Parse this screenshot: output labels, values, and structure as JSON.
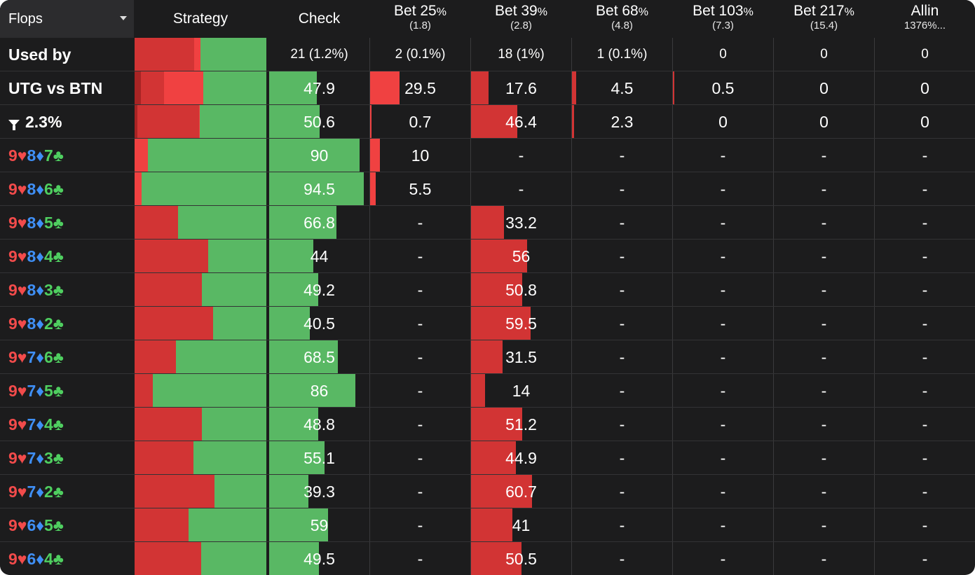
{
  "header": {
    "flops_label": "Flops",
    "strategy_label": "Strategy",
    "check_label": "Check",
    "actions": [
      {
        "label": "Bet 25",
        "pct": "%",
        "sub": "(1.8)"
      },
      {
        "label": "Bet 39",
        "pct": "%",
        "sub": "(2.8)"
      },
      {
        "label": "Bet 68",
        "pct": "%",
        "sub": "(4.8)"
      },
      {
        "label": "Bet 103",
        "pct": "%",
        "sub": "(7.3)"
      },
      {
        "label": "Bet 217",
        "pct": "%",
        "sub": "(15.4)"
      },
      {
        "label": "Allin",
        "pct": "",
        "sub": "1376%..."
      }
    ]
  },
  "colors": {
    "green": "#59b864",
    "red": "#d23434",
    "bright_red": "#f04141",
    "dark_red": "#a82424",
    "background": "#1c1c1d",
    "suit_heart": "#f24b4b",
    "suit_diamond": "#3f8ff5",
    "suit_club": "#4fcf60"
  },
  "summary_rows": [
    {
      "label": "Used by",
      "cells": [
        "21 (1.2%)",
        "2 (0.1%)",
        "18 (1%)",
        "1 (0.1%)",
        "0",
        "0",
        "0"
      ]
    },
    {
      "label": "UTG vs BTN",
      "values": [
        47.9,
        29.5,
        17.6,
        4.5,
        0.5,
        0,
        0
      ],
      "cells": [
        "47.9",
        "29.5",
        "17.6",
        "4.5",
        "0.5",
        "0",
        "0"
      ]
    },
    {
      "label": "2.3%",
      "values": [
        50.6,
        0.7,
        46.4,
        2.3,
        0,
        0,
        0
      ],
      "cells": [
        "50.6",
        "0.7",
        "46.4",
        "2.3",
        "0",
        "0",
        "0"
      ]
    }
  ],
  "flops": [
    {
      "board": [
        {
          "rank": "9",
          "suit": "♥"
        },
        {
          "rank": "8",
          "suit": "♦"
        },
        {
          "rank": "7",
          "suit": "♣"
        }
      ],
      "check": 90,
      "check_text": "90",
      "bet25": 10,
      "bet25_text": "10",
      "bet39": null,
      "bet39_text": "-"
    },
    {
      "board": [
        {
          "rank": "9",
          "suit": "♥"
        },
        {
          "rank": "8",
          "suit": "♦"
        },
        {
          "rank": "6",
          "suit": "♣"
        }
      ],
      "check": 94.5,
      "check_text": "94.5",
      "bet25": 5.5,
      "bet25_text": "5.5",
      "bet39": null,
      "bet39_text": "-"
    },
    {
      "board": [
        {
          "rank": "9",
          "suit": "♥"
        },
        {
          "rank": "8",
          "suit": "♦"
        },
        {
          "rank": "5",
          "suit": "♣"
        }
      ],
      "check": 66.8,
      "check_text": "66.8",
      "bet25": null,
      "bet25_text": "-",
      "bet39": 33.2,
      "bet39_text": "33.2"
    },
    {
      "board": [
        {
          "rank": "9",
          "suit": "♥"
        },
        {
          "rank": "8",
          "suit": "♦"
        },
        {
          "rank": "4",
          "suit": "♣"
        }
      ],
      "check": 44,
      "check_text": "44",
      "bet25": null,
      "bet25_text": "-",
      "bet39": 56,
      "bet39_text": "56"
    },
    {
      "board": [
        {
          "rank": "9",
          "suit": "♥"
        },
        {
          "rank": "8",
          "suit": "♦"
        },
        {
          "rank": "3",
          "suit": "♣"
        }
      ],
      "check": 49.2,
      "check_text": "49.2",
      "bet25": null,
      "bet25_text": "-",
      "bet39": 50.8,
      "bet39_text": "50.8"
    },
    {
      "board": [
        {
          "rank": "9",
          "suit": "♥"
        },
        {
          "rank": "8",
          "suit": "♦"
        },
        {
          "rank": "2",
          "suit": "♣"
        }
      ],
      "check": 40.5,
      "check_text": "40.5",
      "bet25": null,
      "bet25_text": "-",
      "bet39": 59.5,
      "bet39_text": "59.5"
    },
    {
      "board": [
        {
          "rank": "9",
          "suit": "♥"
        },
        {
          "rank": "7",
          "suit": "♦"
        },
        {
          "rank": "6",
          "suit": "♣"
        }
      ],
      "check": 68.5,
      "check_text": "68.5",
      "bet25": null,
      "bet25_text": "-",
      "bet39": 31.5,
      "bet39_text": "31.5"
    },
    {
      "board": [
        {
          "rank": "9",
          "suit": "♥"
        },
        {
          "rank": "7",
          "suit": "♦"
        },
        {
          "rank": "5",
          "suit": "♣"
        }
      ],
      "check": 86,
      "check_text": "86",
      "bet25": null,
      "bet25_text": "-",
      "bet39": 14,
      "bet39_text": "14"
    },
    {
      "board": [
        {
          "rank": "9",
          "suit": "♥"
        },
        {
          "rank": "7",
          "suit": "♦"
        },
        {
          "rank": "4",
          "suit": "♣"
        }
      ],
      "check": 48.8,
      "check_text": "48.8",
      "bet25": null,
      "bet25_text": "-",
      "bet39": 51.2,
      "bet39_text": "51.2"
    },
    {
      "board": [
        {
          "rank": "9",
          "suit": "♥"
        },
        {
          "rank": "7",
          "suit": "♦"
        },
        {
          "rank": "3",
          "suit": "♣"
        }
      ],
      "check": 55.1,
      "check_text": "55.1",
      "bet25": null,
      "bet25_text": "-",
      "bet39": 44.9,
      "bet39_text": "44.9"
    },
    {
      "board": [
        {
          "rank": "9",
          "suit": "♥"
        },
        {
          "rank": "7",
          "suit": "♦"
        },
        {
          "rank": "2",
          "suit": "♣"
        }
      ],
      "check": 39.3,
      "check_text": "39.3",
      "bet25": null,
      "bet25_text": "-",
      "bet39": 60.7,
      "bet39_text": "60.7"
    },
    {
      "board": [
        {
          "rank": "9",
          "suit": "♥"
        },
        {
          "rank": "6",
          "suit": "♦"
        },
        {
          "rank": "5",
          "suit": "♣"
        }
      ],
      "check": 59,
      "check_text": "59",
      "bet25": null,
      "bet25_text": "-",
      "bet39": 41,
      "bet39_text": "41"
    },
    {
      "board": [
        {
          "rank": "9",
          "suit": "♥"
        },
        {
          "rank": "6",
          "suit": "♦"
        },
        {
          "rank": "4",
          "suit": "♣"
        }
      ],
      "check": 49.5,
      "check_text": "49.5",
      "bet25": null,
      "bet25_text": "-",
      "bet39": 50.5,
      "bet39_text": "50.5"
    }
  ],
  "empty_cell": "-"
}
